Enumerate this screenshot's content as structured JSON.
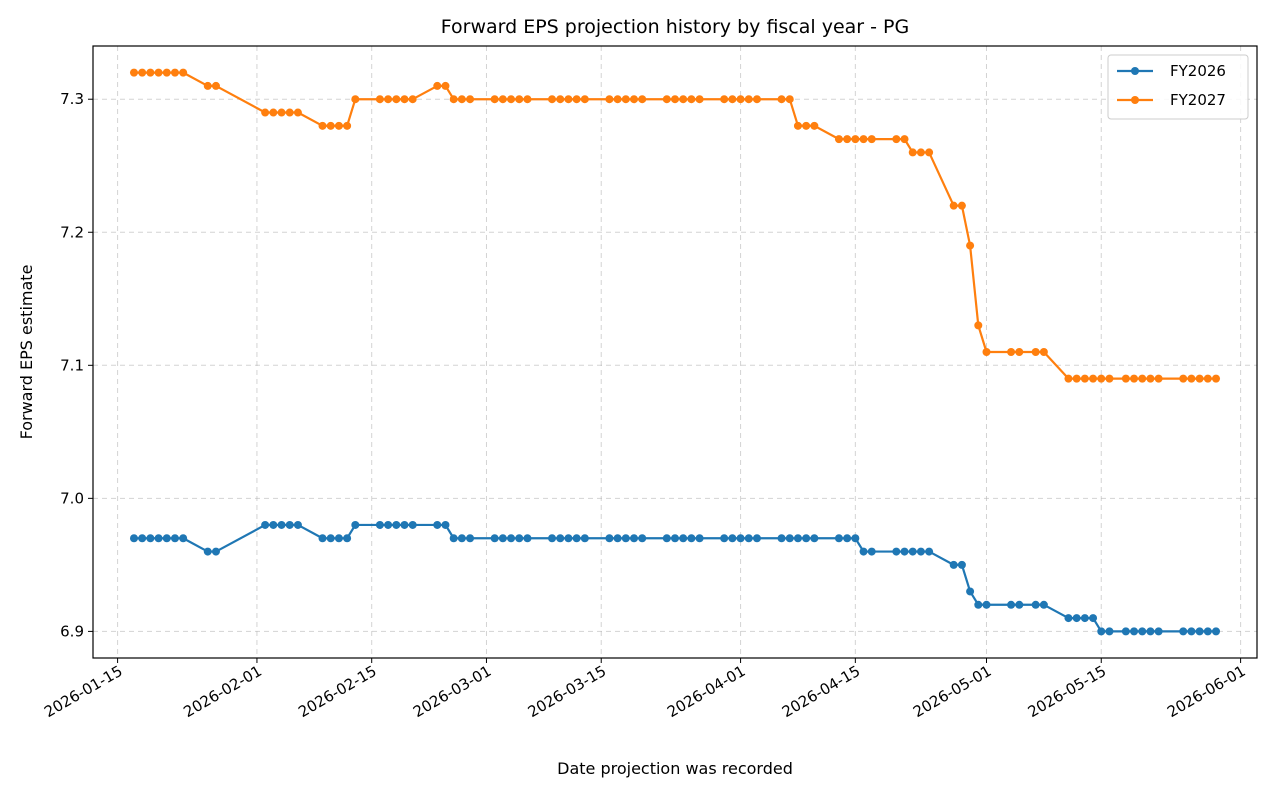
{
  "chart_data": {
    "type": "line",
    "title": "Forward EPS projection history by fiscal year - PG",
    "xlabel": "Date projection was recorded",
    "ylabel": "Forward EPS estimate",
    "xlim": [
      "2026-01-12",
      "2026-06-03"
    ],
    "ylim": [
      6.88,
      7.34
    ],
    "x_ticks": [
      "2026-01-15",
      "2026-02-01",
      "2026-02-15",
      "2026-03-01",
      "2026-03-15",
      "2026-04-01",
      "2026-04-15",
      "2026-05-01",
      "2026-05-15",
      "2026-06-01"
    ],
    "y_ticks": [
      6.9,
      7.0,
      7.1,
      7.2,
      7.3
    ],
    "y_tick_labels": [
      "6.9",
      "7.0",
      "7.1",
      "7.2",
      "7.3"
    ],
    "grid": true,
    "legend_position": "upper right",
    "series": [
      {
        "name": "FY2026",
        "color": "#1f77b4",
        "points": [
          [
            "2026-01-17",
            6.97
          ],
          [
            "2026-01-18",
            6.97
          ],
          [
            "2026-01-19",
            6.97
          ],
          [
            "2026-01-20",
            6.97
          ],
          [
            "2026-01-21",
            6.97
          ],
          [
            "2026-01-22",
            6.97
          ],
          [
            "2026-01-23",
            6.97
          ],
          [
            "2026-01-26",
            6.96
          ],
          [
            "2026-01-27",
            6.96
          ],
          [
            "2026-02-02",
            6.98
          ],
          [
            "2026-02-03",
            6.98
          ],
          [
            "2026-02-04",
            6.98
          ],
          [
            "2026-02-05",
            6.98
          ],
          [
            "2026-02-06",
            6.98
          ],
          [
            "2026-02-09",
            6.97
          ],
          [
            "2026-02-10",
            6.97
          ],
          [
            "2026-02-11",
            6.97
          ],
          [
            "2026-02-12",
            6.97
          ],
          [
            "2026-02-13",
            6.98
          ],
          [
            "2026-02-16",
            6.98
          ],
          [
            "2026-02-17",
            6.98
          ],
          [
            "2026-02-18",
            6.98
          ],
          [
            "2026-02-19",
            6.98
          ],
          [
            "2026-02-20",
            6.98
          ],
          [
            "2026-02-23",
            6.98
          ],
          [
            "2026-02-24",
            6.98
          ],
          [
            "2026-02-25",
            6.97
          ],
          [
            "2026-02-26",
            6.97
          ],
          [
            "2026-02-27",
            6.97
          ],
          [
            "2026-03-02",
            6.97
          ],
          [
            "2026-03-03",
            6.97
          ],
          [
            "2026-03-04",
            6.97
          ],
          [
            "2026-03-05",
            6.97
          ],
          [
            "2026-03-06",
            6.97
          ],
          [
            "2026-03-09",
            6.97
          ],
          [
            "2026-03-10",
            6.97
          ],
          [
            "2026-03-11",
            6.97
          ],
          [
            "2026-03-12",
            6.97
          ],
          [
            "2026-03-13",
            6.97
          ],
          [
            "2026-03-16",
            6.97
          ],
          [
            "2026-03-17",
            6.97
          ],
          [
            "2026-03-18",
            6.97
          ],
          [
            "2026-03-19",
            6.97
          ],
          [
            "2026-03-20",
            6.97
          ],
          [
            "2026-03-23",
            6.97
          ],
          [
            "2026-03-24",
            6.97
          ],
          [
            "2026-03-25",
            6.97
          ],
          [
            "2026-03-26",
            6.97
          ],
          [
            "2026-03-27",
            6.97
          ],
          [
            "2026-03-30",
            6.97
          ],
          [
            "2026-03-31",
            6.97
          ],
          [
            "2026-04-01",
            6.97
          ],
          [
            "2026-04-02",
            6.97
          ],
          [
            "2026-04-03",
            6.97
          ],
          [
            "2026-04-06",
            6.97
          ],
          [
            "2026-04-07",
            6.97
          ],
          [
            "2026-04-08",
            6.97
          ],
          [
            "2026-04-09",
            6.97
          ],
          [
            "2026-04-10",
            6.97
          ],
          [
            "2026-04-13",
            6.97
          ],
          [
            "2026-04-14",
            6.97
          ],
          [
            "2026-04-15",
            6.97
          ],
          [
            "2026-04-16",
            6.96
          ],
          [
            "2026-04-17",
            6.96
          ],
          [
            "2026-04-20",
            6.96
          ],
          [
            "2026-04-21",
            6.96
          ],
          [
            "2026-04-22",
            6.96
          ],
          [
            "2026-04-23",
            6.96
          ],
          [
            "2026-04-24",
            6.96
          ],
          [
            "2026-04-27",
            6.95
          ],
          [
            "2026-04-28",
            6.95
          ],
          [
            "2026-04-29",
            6.93
          ],
          [
            "2026-04-30",
            6.92
          ],
          [
            "2026-05-01",
            6.92
          ],
          [
            "2026-05-04",
            6.92
          ],
          [
            "2026-05-05",
            6.92
          ],
          [
            "2026-05-07",
            6.92
          ],
          [
            "2026-05-08",
            6.92
          ],
          [
            "2026-05-11",
            6.91
          ],
          [
            "2026-05-12",
            6.91
          ],
          [
            "2026-05-13",
            6.91
          ],
          [
            "2026-05-14",
            6.91
          ],
          [
            "2026-05-15",
            6.9
          ],
          [
            "2026-05-16",
            6.9
          ],
          [
            "2026-05-18",
            6.9
          ],
          [
            "2026-05-19",
            6.9
          ],
          [
            "2026-05-20",
            6.9
          ],
          [
            "2026-05-21",
            6.9
          ],
          [
            "2026-05-22",
            6.9
          ],
          [
            "2026-05-25",
            6.9
          ],
          [
            "2026-05-26",
            6.9
          ],
          [
            "2026-05-27",
            6.9
          ],
          [
            "2026-05-28",
            6.9
          ],
          [
            "2026-05-29",
            6.9
          ]
        ]
      },
      {
        "name": "FY2027",
        "color": "#ff7f0e",
        "points": [
          [
            "2026-01-17",
            7.32
          ],
          [
            "2026-01-18",
            7.32
          ],
          [
            "2026-01-19",
            7.32
          ],
          [
            "2026-01-20",
            7.32
          ],
          [
            "2026-01-21",
            7.32
          ],
          [
            "2026-01-22",
            7.32
          ],
          [
            "2026-01-23",
            7.32
          ],
          [
            "2026-01-26",
            7.31
          ],
          [
            "2026-01-27",
            7.31
          ],
          [
            "2026-02-02",
            7.29
          ],
          [
            "2026-02-03",
            7.29
          ],
          [
            "2026-02-04",
            7.29
          ],
          [
            "2026-02-05",
            7.29
          ],
          [
            "2026-02-06",
            7.29
          ],
          [
            "2026-02-09",
            7.28
          ],
          [
            "2026-02-10",
            7.28
          ],
          [
            "2026-02-11",
            7.28
          ],
          [
            "2026-02-12",
            7.28
          ],
          [
            "2026-02-13",
            7.3
          ],
          [
            "2026-02-16",
            7.3
          ],
          [
            "2026-02-17",
            7.3
          ],
          [
            "2026-02-18",
            7.3
          ],
          [
            "2026-02-19",
            7.3
          ],
          [
            "2026-02-20",
            7.3
          ],
          [
            "2026-02-23",
            7.31
          ],
          [
            "2026-02-24",
            7.31
          ],
          [
            "2026-02-25",
            7.3
          ],
          [
            "2026-02-26",
            7.3
          ],
          [
            "2026-02-27",
            7.3
          ],
          [
            "2026-03-02",
            7.3
          ],
          [
            "2026-03-03",
            7.3
          ],
          [
            "2026-03-04",
            7.3
          ],
          [
            "2026-03-05",
            7.3
          ],
          [
            "2026-03-06",
            7.3
          ],
          [
            "2026-03-09",
            7.3
          ],
          [
            "2026-03-10",
            7.3
          ],
          [
            "2026-03-11",
            7.3
          ],
          [
            "2026-03-12",
            7.3
          ],
          [
            "2026-03-13",
            7.3
          ],
          [
            "2026-03-16",
            7.3
          ],
          [
            "2026-03-17",
            7.3
          ],
          [
            "2026-03-18",
            7.3
          ],
          [
            "2026-03-19",
            7.3
          ],
          [
            "2026-03-20",
            7.3
          ],
          [
            "2026-03-23",
            7.3
          ],
          [
            "2026-03-24",
            7.3
          ],
          [
            "2026-03-25",
            7.3
          ],
          [
            "2026-03-26",
            7.3
          ],
          [
            "2026-03-27",
            7.3
          ],
          [
            "2026-03-30",
            7.3
          ],
          [
            "2026-03-31",
            7.3
          ],
          [
            "2026-04-01",
            7.3
          ],
          [
            "2026-04-02",
            7.3
          ],
          [
            "2026-04-03",
            7.3
          ],
          [
            "2026-04-06",
            7.3
          ],
          [
            "2026-04-07",
            7.3
          ],
          [
            "2026-04-08",
            7.28
          ],
          [
            "2026-04-09",
            7.28
          ],
          [
            "2026-04-10",
            7.28
          ],
          [
            "2026-04-13",
            7.27
          ],
          [
            "2026-04-14",
            7.27
          ],
          [
            "2026-04-15",
            7.27
          ],
          [
            "2026-04-16",
            7.27
          ],
          [
            "2026-04-17",
            7.27
          ],
          [
            "2026-04-20",
            7.27
          ],
          [
            "2026-04-21",
            7.27
          ],
          [
            "2026-04-22",
            7.26
          ],
          [
            "2026-04-23",
            7.26
          ],
          [
            "2026-04-24",
            7.26
          ],
          [
            "2026-04-27",
            7.22
          ],
          [
            "2026-04-28",
            7.22
          ],
          [
            "2026-04-29",
            7.19
          ],
          [
            "2026-04-30",
            7.13
          ],
          [
            "2026-05-01",
            7.11
          ],
          [
            "2026-05-04",
            7.11
          ],
          [
            "2026-05-05",
            7.11
          ],
          [
            "2026-05-07",
            7.11
          ],
          [
            "2026-05-08",
            7.11
          ],
          [
            "2026-05-11",
            7.09
          ],
          [
            "2026-05-12",
            7.09
          ],
          [
            "2026-05-13",
            7.09
          ],
          [
            "2026-05-14",
            7.09
          ],
          [
            "2026-05-15",
            7.09
          ],
          [
            "2026-05-16",
            7.09
          ],
          [
            "2026-05-18",
            7.09
          ],
          [
            "2026-05-19",
            7.09
          ],
          [
            "2026-05-20",
            7.09
          ],
          [
            "2026-05-21",
            7.09
          ],
          [
            "2026-05-22",
            7.09
          ],
          [
            "2026-05-25",
            7.09
          ],
          [
            "2026-05-26",
            7.09
          ],
          [
            "2026-05-27",
            7.09
          ],
          [
            "2026-05-28",
            7.09
          ],
          [
            "2026-05-29",
            7.09
          ]
        ]
      }
    ]
  }
}
